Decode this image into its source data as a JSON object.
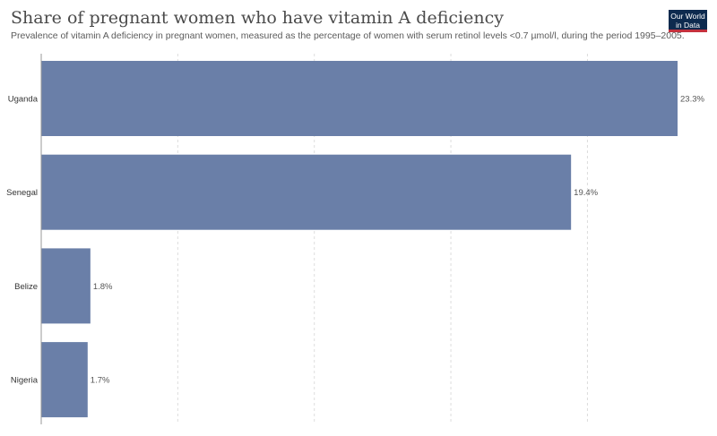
{
  "header": {
    "title": "Share of pregnant women who have vitamin A deficiency",
    "subtitle": "Prevalence of vitamin A deficiency in pregnant women, measured as the percentage of women with serum retinol levels <0.7 µmol/l, during the period 1995–2005."
  },
  "logo": {
    "line1": "Our World",
    "line2": "in Data"
  },
  "colors": {
    "bar": "#6a7fa8",
    "grid": "#dddddd",
    "axis": "#999999",
    "label": "#333333",
    "value_label": "#555555"
  },
  "chart_data": {
    "type": "bar",
    "orientation": "horizontal",
    "categories": [
      "Uganda",
      "Senegal",
      "Belize",
      "Nigeria"
    ],
    "values": [
      23.3,
      19.4,
      1.8,
      1.7
    ],
    "value_labels": [
      "23.3%",
      "19.4%",
      "1.8%",
      "1.7%"
    ],
    "unit": "%",
    "xlim": [
      0,
      23.3
    ],
    "grid_values": [
      5,
      10,
      15,
      20
    ],
    "grid": true
  }
}
